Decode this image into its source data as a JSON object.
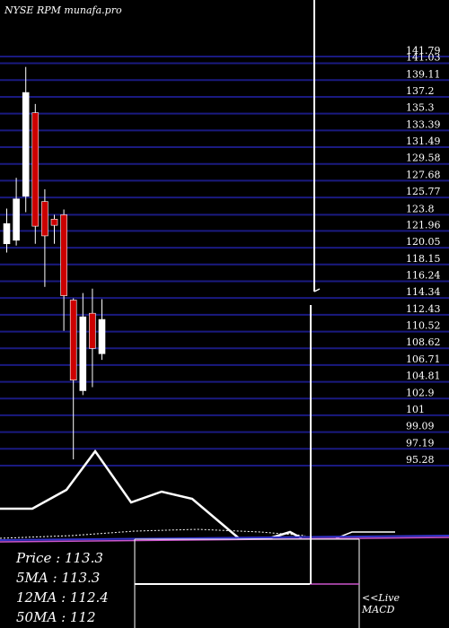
{
  "chart_data": {
    "type": "candlestick",
    "title": "NYSE RPM munafa.pro",
    "y_ticks": [
      141.79,
      141.03,
      139.11,
      137.2,
      135.3,
      133.39,
      131.49,
      129.58,
      127.68,
      125.77,
      123.8,
      121.96,
      120.05,
      118.15,
      116.24,
      114.34,
      112.43,
      110.52,
      108.62,
      106.71,
      104.81,
      102.9,
      101,
      99.09,
      97.19,
      95.28
    ],
    "ylim": [
      95.28,
      141.79
    ],
    "candles": [
      {
        "open": 120.5,
        "close": 122.8,
        "high": 124.5,
        "low": 119.5,
        "color": "white"
      },
      {
        "open": 120.9,
        "close": 125.6,
        "high": 128.0,
        "low": 120.3,
        "color": "white"
      },
      {
        "open": 125.9,
        "close": 137.7,
        "high": 140.6,
        "low": 124.1,
        "color": "white"
      },
      {
        "open": 135.4,
        "close": 122.5,
        "high": 136.4,
        "low": 120.5,
        "color": "red"
      },
      {
        "open": 125.3,
        "close": 121.4,
        "high": 126.7,
        "low": 115.6,
        "color": "red"
      },
      {
        "open": 123.3,
        "close": 122.6,
        "high": 123.8,
        "low": 120.5,
        "color": "red"
      },
      {
        "open": 123.8,
        "close": 114.6,
        "high": 124.4,
        "low": 110.6,
        "color": "red"
      },
      {
        "open": 114.1,
        "close": 105.0,
        "high": 114.3,
        "low": 96.0,
        "color": "red"
      },
      {
        "open": 112.2,
        "close": 103.8,
        "high": 114.9,
        "low": 103.3,
        "color": "white"
      },
      {
        "open": 112.6,
        "close": 108.6,
        "high": 115.4,
        "low": 104.2,
        "color": "red"
      },
      {
        "open": 108.0,
        "close": 111.9,
        "high": 114.2,
        "low": 107.3,
        "color": "white"
      }
    ]
  },
  "legend": {
    "price_label": "Price",
    "price_value": ": 113.3",
    "ma5_label": "5MA",
    "ma5_value": ": 113.3",
    "ma12_label": "12MA",
    "ma12_value": ": 112.4",
    "ma50_label": "50MA",
    "ma50_value": ": 112"
  },
  "macd": {
    "line1": "<<Live",
    "line2": "MACD"
  },
  "colors": {
    "background": "#000000",
    "grid": "#1a1a80",
    "bull": "#ffffff",
    "bear": "#cc0000",
    "ma_purple": "#cc55cc",
    "ma_blue": "#3333cc"
  }
}
